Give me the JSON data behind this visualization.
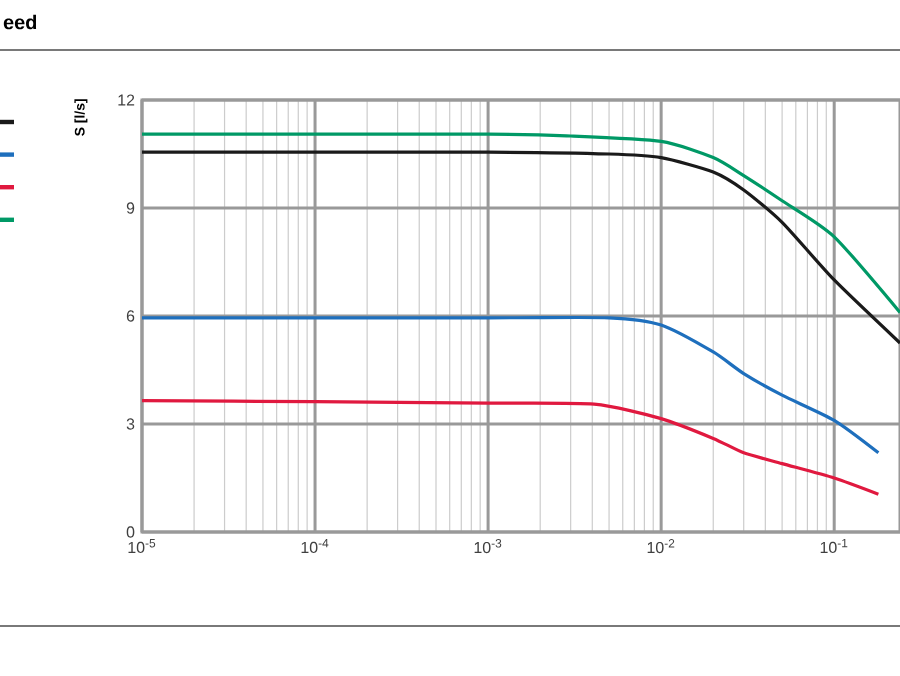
{
  "chart_data": {
    "type": "line",
    "title": "eed",
    "ylabel": "S [l/s]",
    "log": "x",
    "grid": true,
    "marker": "none",
    "line_style": "solid",
    "xlim": [
      1e-05,
      0.24
    ],
    "ylim": [
      0,
      12
    ],
    "xticks": [
      {
        "value": 1e-05,
        "label": "10$^{-5}$"
      },
      {
        "value": 0.0001,
        "label": "10$^{-4}$"
      },
      {
        "value": 0.001,
        "label": "10$^{-3}$"
      },
      {
        "value": 0.01,
        "label": "10$^{-2}$"
      },
      {
        "value": 0.1,
        "label": "10$^{-1}$"
      }
    ],
    "yticks": [
      0,
      3,
      6,
      9,
      12
    ],
    "series": [
      {
        "color": "#1a1a1a",
        "x": [
          1e-05,
          0.001,
          0.005,
          0.01,
          0.02,
          0.03,
          0.05,
          0.1,
          0.24
        ],
        "values": [
          10.55,
          10.55,
          10.5,
          10.4,
          10.0,
          9.5,
          8.6,
          7.0,
          5.25
        ]
      },
      {
        "color": "#1e6fbd",
        "x": [
          1e-05,
          0.001,
          0.005,
          0.01,
          0.02,
          0.03,
          0.05,
          0.1,
          0.18
        ],
        "values": [
          5.95,
          5.95,
          5.95,
          5.75,
          5.0,
          4.4,
          3.8,
          3.1,
          2.2
        ]
      },
      {
        "color": "#e0193f",
        "x": [
          1e-05,
          0.0001,
          0.001,
          0.0041,
          0.01,
          0.02,
          0.03,
          0.05,
          0.1,
          0.18
        ],
        "values": [
          3.65,
          3.62,
          3.58,
          3.55,
          3.15,
          2.6,
          2.2,
          1.9,
          1.5,
          1.05
        ]
      },
      {
        "color": "#009966",
        "x": [
          1e-05,
          0.001,
          0.003,
          0.01,
          0.02,
          0.03,
          0.05,
          0.1,
          0.24
        ],
        "values": [
          11.05,
          11.05,
          11.0,
          10.85,
          10.4,
          9.9,
          9.2,
          8.2,
          6.1
        ]
      }
    ]
  }
}
